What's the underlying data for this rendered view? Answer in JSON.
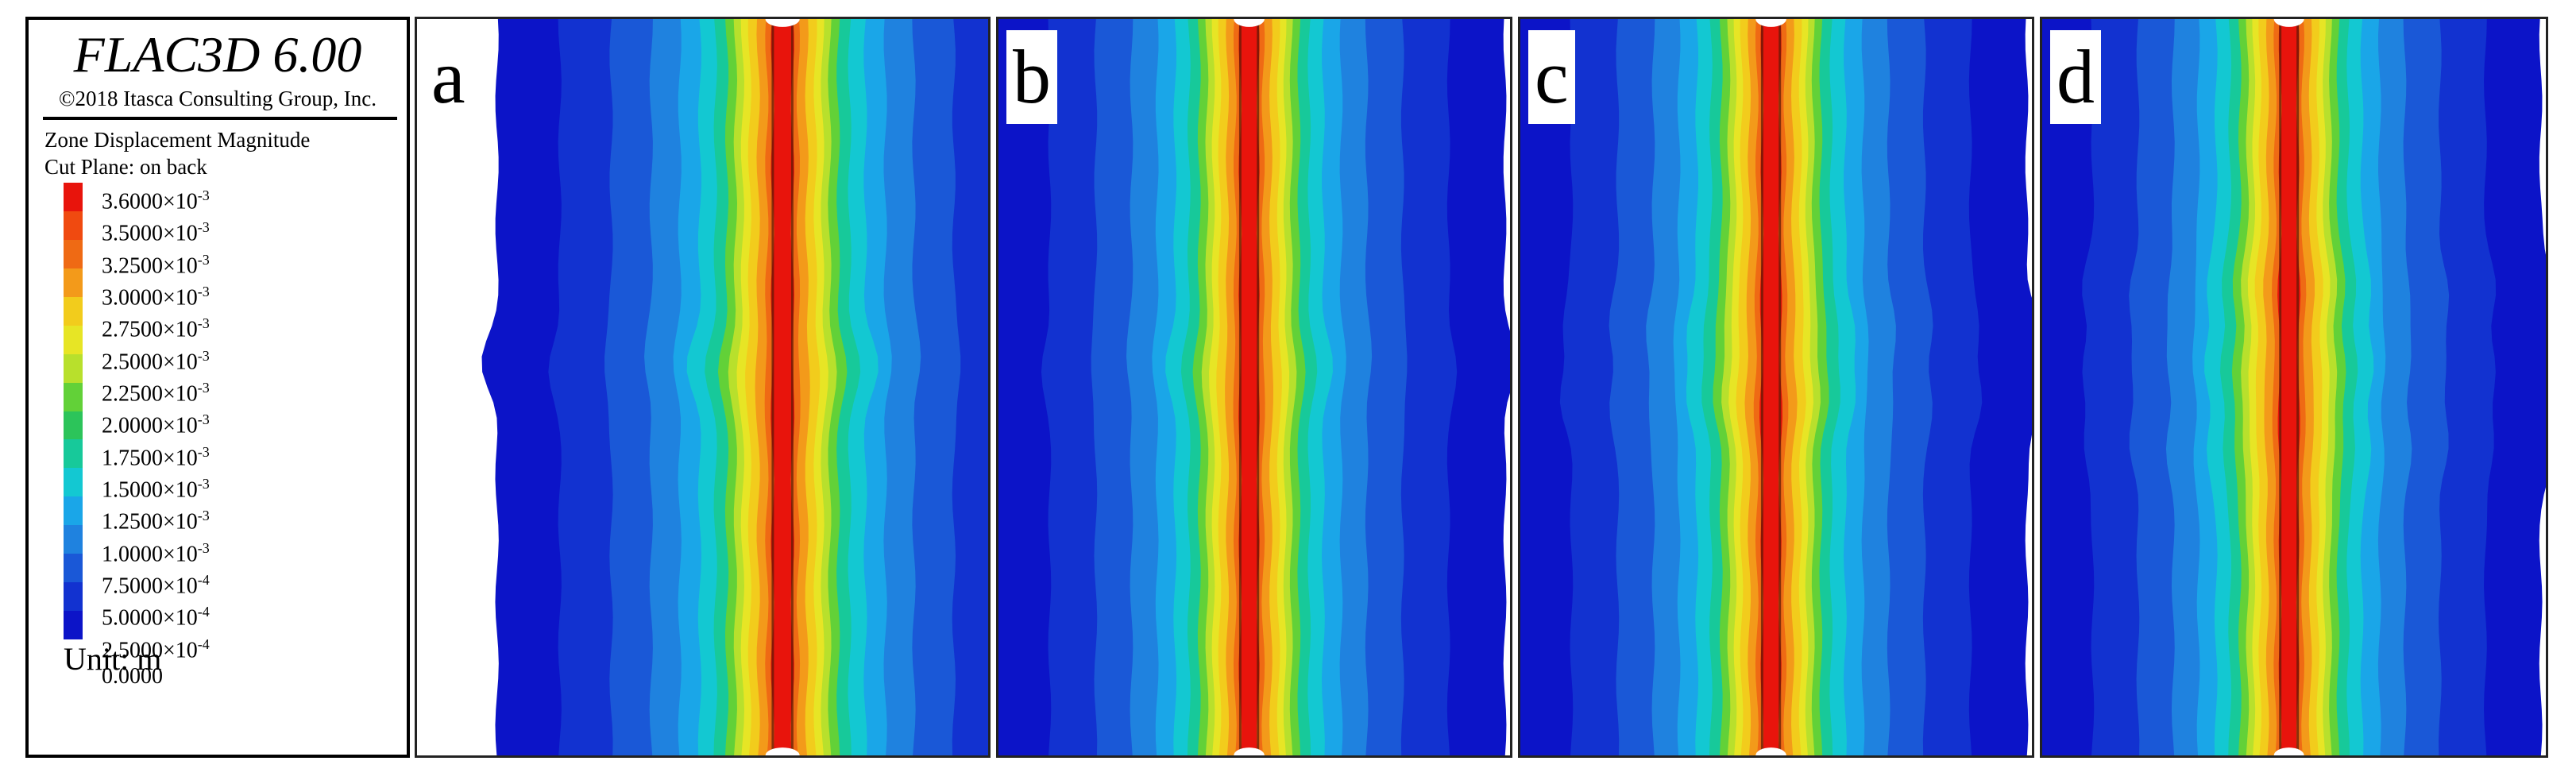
{
  "legend": {
    "title": "FLAC3D 6.00",
    "copyright": "©2018 Itasca Consulting Group, Inc.",
    "contour_title": "Zone Displacement Magnitude",
    "cut_plane": "Cut Plane: on back",
    "levels": [
      {
        "mant": "3.6000×10",
        "exp": "-3"
      },
      {
        "mant": "3.5000×10",
        "exp": "-3"
      },
      {
        "mant": "3.2500×10",
        "exp": "-3"
      },
      {
        "mant": "3.0000×10",
        "exp": "-3"
      },
      {
        "mant": "2.7500×10",
        "exp": "-3"
      },
      {
        "mant": "2.5000×10",
        "exp": "-3"
      },
      {
        "mant": "2.2500×10",
        "exp": "-3"
      },
      {
        "mant": "2.0000×10",
        "exp": "-3"
      },
      {
        "mant": "1.7500×10",
        "exp": "-3"
      },
      {
        "mant": "1.5000×10",
        "exp": "-3"
      },
      {
        "mant": "1.2500×10",
        "exp": "-3"
      },
      {
        "mant": "1.0000×10",
        "exp": "-3"
      },
      {
        "mant": "7.5000×10",
        "exp": "-4"
      },
      {
        "mant": "5.0000×10",
        "exp": "-4"
      },
      {
        "mant": "2.5000×10",
        "exp": "-4"
      },
      {
        "mant": "0.0000",
        "exp": ""
      }
    ],
    "colors": [
      "#e8140c",
      "#f04a10",
      "#ef6a14",
      "#f39a1a",
      "#f2cc1c",
      "#e7e525",
      "#b8e02c",
      "#62d138",
      "#2cc45a",
      "#17c99a",
      "#13c8d2",
      "#1aa6e8",
      "#1f82df",
      "#1a58d7",
      "#1232d0",
      "#0c14c8"
    ],
    "unit": "Unit: m"
  },
  "panels": [
    {
      "label": "a"
    },
    {
      "label": "b"
    },
    {
      "label": "c"
    },
    {
      "label": "d"
    }
  ]
}
